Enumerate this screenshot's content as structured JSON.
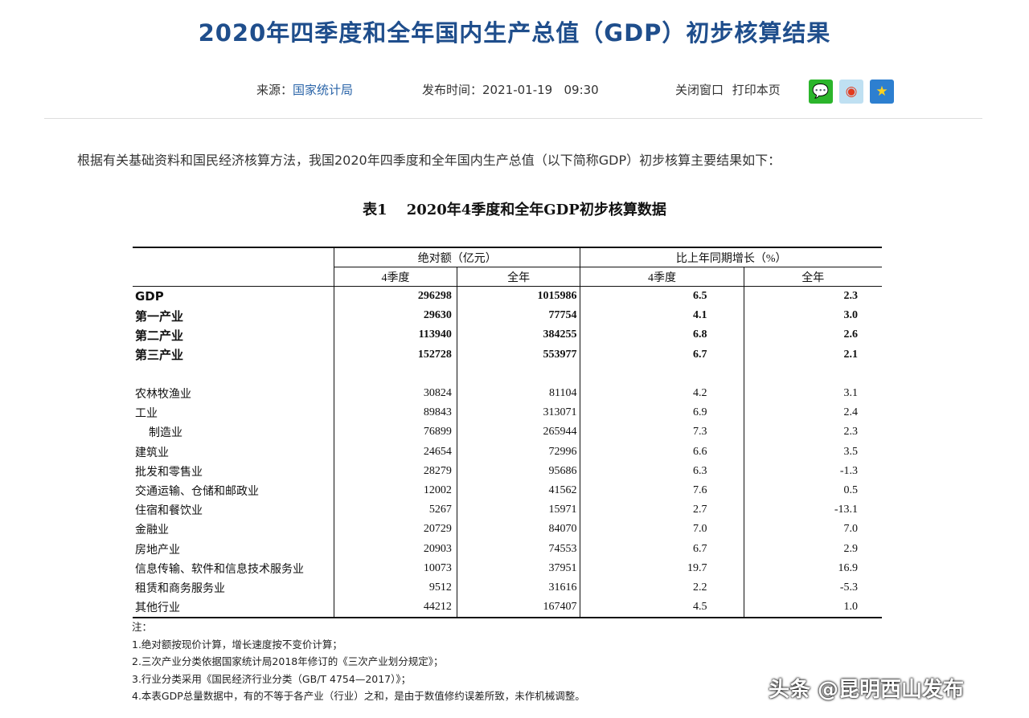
{
  "title": "2020年四季度和全年国内生产总值（GDP）初步核算结果",
  "meta": {
    "source_label": "来源：",
    "source": "国家统计局",
    "publish_label": "发布时间：",
    "publish_time": "2021-01-19   09:30",
    "close_window": "关闭窗口",
    "print_page": "打印本页"
  },
  "share_icons": [
    "wechat-icon",
    "weibo-icon",
    "favorite-star-icon"
  ],
  "intro": "根据有关基础资料和国民经济核算方法，我国2020年四季度和全年国内生产总值（以下简称GDP）初步核算主要结果如下：",
  "table": {
    "caption_no": "表1",
    "caption": "2020年4季度和全年GDP初步核算数据",
    "group_headers": [
      "绝对额（亿元）",
      "比上年同期增长（%）"
    ],
    "sub_headers": [
      "4季度",
      "全年",
      "4季度",
      "全年"
    ],
    "rows": [
      {
        "label": "GDP",
        "q4": "296298",
        "year": "1015986",
        "q4_g": "6.5",
        "year_g": "2.3",
        "bold": true
      },
      {
        "label": "第一产业",
        "q4": "29630",
        "year": "77754",
        "q4_g": "4.1",
        "year_g": "3.0",
        "bold": true
      },
      {
        "label": "第二产业",
        "q4": "113940",
        "year": "384255",
        "q4_g": "6.8",
        "year_g": "2.6",
        "bold": true
      },
      {
        "label": "第三产业",
        "q4": "152728",
        "year": "553977",
        "q4_g": "6.7",
        "year_g": "2.1",
        "bold": true
      },
      {
        "label": "",
        "q4": "",
        "year": "",
        "q4_g": "",
        "year_g": ""
      },
      {
        "label": "农林牧渔业",
        "q4": "30824",
        "year": "81104",
        "q4_g": "4.2",
        "year_g": "3.1"
      },
      {
        "label": "工业",
        "q4": "89843",
        "year": "313071",
        "q4_g": "6.9",
        "year_g": "2.4"
      },
      {
        "label": "制造业",
        "q4": "76899",
        "year": "265944",
        "q4_g": "7.3",
        "year_g": "2.3",
        "indent": true
      },
      {
        "label": "建筑业",
        "q4": "24654",
        "year": "72996",
        "q4_g": "6.6",
        "year_g": "3.5"
      },
      {
        "label": "批发和零售业",
        "q4": "28279",
        "year": "95686",
        "q4_g": "6.3",
        "year_g": "-1.3"
      },
      {
        "label": "交通运输、仓储和邮政业",
        "q4": "12002",
        "year": "41562",
        "q4_g": "7.6",
        "year_g": "0.5"
      },
      {
        "label": "住宿和餐饮业",
        "q4": "5267",
        "year": "15971",
        "q4_g": "2.7",
        "year_g": "-13.1"
      },
      {
        "label": "金融业",
        "q4": "20729",
        "year": "84070",
        "q4_g": "7.0",
        "year_g": "7.0"
      },
      {
        "label": "房地产业",
        "q4": "20903",
        "year": "74553",
        "q4_g": "6.7",
        "year_g": "2.9"
      },
      {
        "label": "信息传输、软件和信息技术服务业",
        "q4": "10073",
        "year": "37951",
        "q4_g": "19.7",
        "year_g": "16.9"
      },
      {
        "label": "租赁和商务服务业",
        "q4": "9512",
        "year": "31616",
        "q4_g": "2.2",
        "year_g": "-5.3"
      },
      {
        "label": "其他行业",
        "q4": "44212",
        "year": "167407",
        "q4_g": "4.5",
        "year_g": "1.0"
      }
    ]
  },
  "notes": [
    "注：",
    "1.绝对额按现价计算，增长速度按不变价计算；",
    "2.三次产业分类依据国家统计局2018年修订的《三次产业划分规定》；",
    "3.行业分类采用《国民经济行业分类（GB/T 4754—2017）》；",
    "4.本表GDP总量数据中，有的不等于各产业（行业）之和，是由于数值修约误差所致，未作机械调整。"
  ],
  "watermark": "头条 @昆明西山发布"
}
